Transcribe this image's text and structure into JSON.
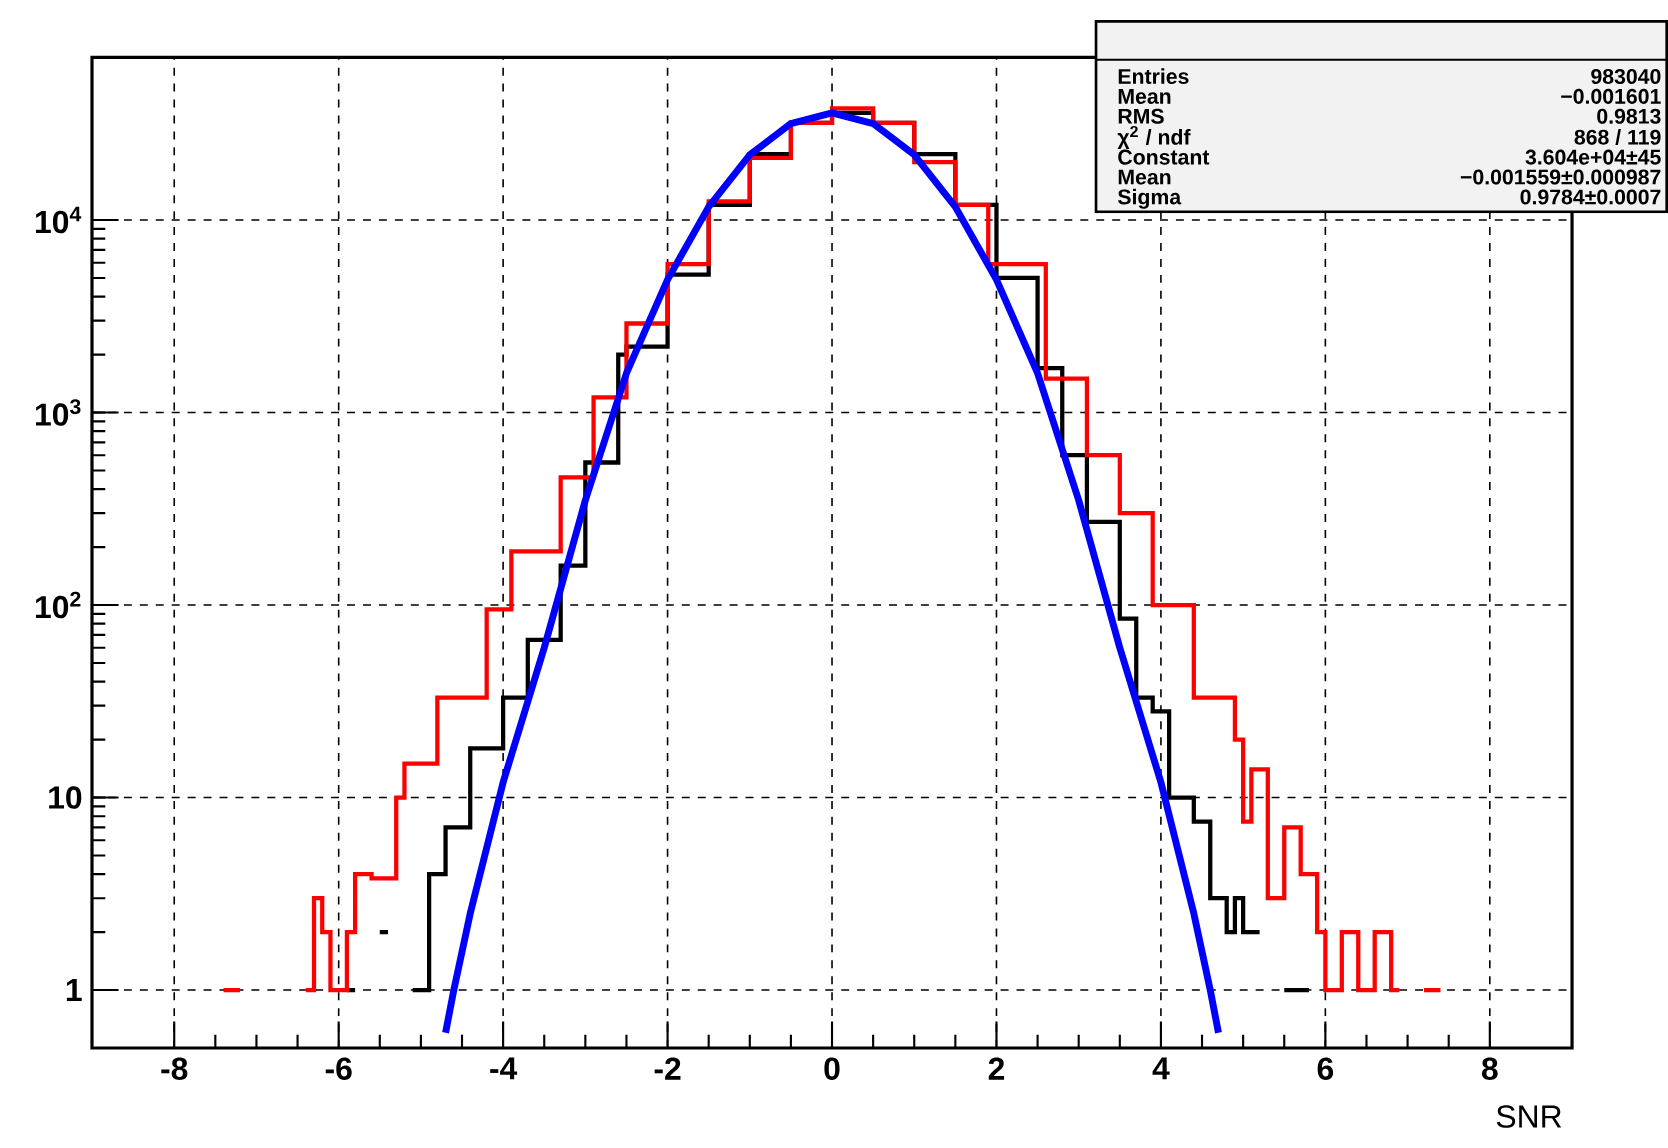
{
  "chart_data": {
    "type": "step",
    "xlabel": "SNR",
    "log": "y",
    "grid": true,
    "xlim": [
      -9,
      9
    ],
    "ylim": [
      0.5,
      70000
    ],
    "xticks": [
      -8,
      -6,
      -4,
      -2,
      0,
      2,
      4,
      6,
      8
    ],
    "yticks": [
      1,
      10,
      {
        "value": 100,
        "label": "10$^{2}$"
      },
      {
        "value": 1000,
        "label": "10$^{3}$"
      },
      {
        "value": 10000,
        "label": "10$^{4}$"
      }
    ],
    "series": [
      {
        "type": "step",
        "color": "#000000",
        "x": [
          -5.9,
          -5.8,
          -5.5,
          -5.4,
          -5.1,
          -4.9,
          -4.7,
          -4.5,
          -4.4,
          -4.2,
          -4.0,
          -3.7,
          -3.3,
          -3.0,
          -2.6,
          -2.5,
          -2.0,
          -1.5,
          -1.0,
          -0.5,
          0.0,
          0.5,
          1.0,
          1.5,
          2.0,
          2.5,
          2.8,
          3.1,
          3.5,
          3.7,
          3.9,
          4.1,
          4.4,
          4.6,
          4.8,
          4.9,
          5.0,
          5.2,
          5.5,
          5.8
        ],
        "values": [
          1,
          null,
          2,
          null,
          1,
          4,
          7,
          7,
          18,
          18,
          33,
          66,
          160,
          550,
          2000,
          2200,
          5200,
          12000,
          22000,
          32000,
          36000,
          32000,
          22000,
          12000,
          5000,
          1700,
          600,
          270,
          85,
          33,
          28,
          10,
          7.5,
          3,
          2,
          3,
          2,
          null,
          1,
          1
        ]
      },
      {
        "type": "step",
        "color": "#ff0000",
        "x": [
          -7.4,
          -7.2,
          -6.4,
          -6.3,
          -6.2,
          -6.1,
          -5.9,
          -5.8,
          -5.6,
          -5.3,
          -5.2,
          -4.8,
          -4.2,
          -3.9,
          -3.3,
          -2.9,
          -2.5,
          -2.0,
          -1.5,
          -1.0,
          -0.5,
          0.0,
          0.5,
          1.0,
          1.5,
          1.9,
          2.6,
          3.1,
          3.5,
          3.9,
          4.4,
          4.9,
          5.0,
          5.1,
          5.3,
          5.5,
          5.7,
          5.9,
          6.0,
          6.2,
          6.4,
          6.6,
          6.8,
          6.9,
          7.2,
          7.4
        ],
        "values": [
          1,
          null,
          1,
          3,
          2,
          1,
          2,
          4,
          3.8,
          10,
          15,
          33,
          95,
          190,
          460,
          1200,
          2900,
          5900,
          12500,
          21000,
          32000,
          38000,
          32000,
          20000,
          12000,
          5900,
          1500,
          600,
          300,
          100,
          33,
          20,
          7.5,
          14,
          3,
          7,
          4,
          2,
          1,
          2,
          1,
          2,
          1,
          null,
          1,
          1
        ]
      },
      {
        "type": "line",
        "color": "#0000ff",
        "x": [
          -4.7,
          -4.6,
          -4.4,
          -4.0,
          -3.5,
          -3.0,
          -2.5,
          -2.0,
          -1.5,
          -1.0,
          -0.5,
          0.0,
          0.5,
          1.0,
          1.5,
          2.0,
          2.5,
          3.0,
          3.5,
          4.0,
          4.4,
          4.6,
          4.7
        ],
        "values": [
          0.6,
          1,
          2.5,
          12,
          60,
          350,
          1600,
          4900,
          11700,
          21800,
          31700,
          36000,
          31700,
          21800,
          11700,
          4900,
          1600,
          350,
          60,
          12,
          2.5,
          1,
          0.6
        ]
      }
    ],
    "annotations": [
      "Entries",
      "983040",
      "Mean",
      "−0.001601",
      "RMS",
      "0.9813",
      "χ$^{2}$ / ndf",
      "868 / 119",
      "Constant",
      "3.604e+04±45",
      "Mean",
      "−0.001559±0.000987",
      "Sigma",
      "0.9784±0.0007"
    ]
  }
}
